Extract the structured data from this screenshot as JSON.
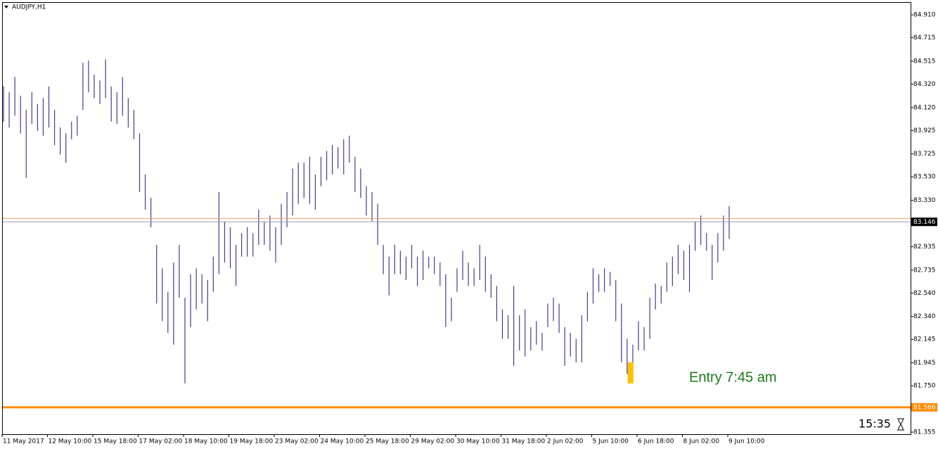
{
  "chart_data": {
    "type": "bar-range",
    "title": "AUDJPY,H1",
    "color": "#4b3a8c",
    "categories": [
      "11 May 2017",
      "12 May 10:00",
      "15 May 18:00",
      "17 May 02:00",
      "18 May 10:00",
      "19 May 18:00",
      "23 May 02:00",
      "24 May 10:00",
      "25 May 18:00",
      "29 May 02:00",
      "30 May 10:00",
      "31 May 18:00",
      "2 Jun 02:00",
      "5 Jun 10:00",
      "6 Jun 18:00",
      "8 Jun 02:00",
      "9 Jun 10:00"
    ],
    "high": [
      84.3,
      84.25,
      84.38,
      84.22,
      84.1,
      84.25,
      84.15,
      84.2,
      84.3,
      84.1,
      83.95,
      83.9,
      84.0,
      84.05,
      84.5,
      84.52,
      84.4,
      84.35,
      84.53,
      84.3,
      84.25,
      84.38,
      84.2,
      84.1,
      83.9,
      83.55,
      83.35,
      82.95,
      82.75,
      82.55,
      82.8,
      82.95,
      82.5,
      82.7,
      82.75,
      82.7,
      82.65,
      82.85,
      83.4,
      83.15,
      83.1,
      82.95,
      83.05,
      83.1,
      83.05,
      83.25,
      83.15,
      83.2,
      83.1,
      83.3,
      83.4,
      83.6,
      83.65,
      83.65,
      83.7,
      83.55,
      83.7,
      83.75,
      83.8,
      83.78,
      83.85,
      83.88,
      83.7,
      83.6,
      83.45,
      83.4,
      83.3,
      82.95,
      82.85,
      82.95,
      82.9,
      82.85,
      82.95,
      82.85,
      82.9,
      82.85,
      82.85,
      82.8,
      82.7,
      82.5,
      82.75,
      82.9,
      82.8,
      82.75,
      82.95,
      82.85,
      82.7,
      82.6,
      82.4,
      82.35,
      82.6,
      82.35,
      82.4,
      82.25,
      82.3,
      82.2,
      82.45,
      82.5,
      82.45,
      82.25,
      82.2,
      82.15,
      82.35,
      82.55,
      82.75,
      82.7,
      82.75,
      82.72,
      82.65,
      82.45,
      82.15,
      82.1,
      82.3,
      82.25,
      82.5,
      82.62,
      82.6,
      82.8,
      82.85,
      82.95,
      82.9,
      82.95,
      83.15,
      83.2,
      83.05,
      82.95,
      83.05,
      83.2,
      83.28
    ],
    "low": [
      84.0,
      83.95,
      84.05,
      83.9,
      83.52,
      83.98,
      83.92,
      83.88,
      83.95,
      83.8,
      83.72,
      83.65,
      83.85,
      83.88,
      84.1,
      84.25,
      84.2,
      84.15,
      84.2,
      84.0,
      83.98,
      84.05,
      83.95,
      83.85,
      83.4,
      83.25,
      83.1,
      82.45,
      82.3,
      82.2,
      82.1,
      82.5,
      81.77,
      82.25,
      82.4,
      82.45,
      82.3,
      82.55,
      82.7,
      82.8,
      82.75,
      82.6,
      82.85,
      82.85,
      82.85,
      82.95,
      82.95,
      82.9,
      82.8,
      82.95,
      83.1,
      83.2,
      83.3,
      83.35,
      83.3,
      83.25,
      83.45,
      83.5,
      83.55,
      83.6,
      83.55,
      83.65,
      83.4,
      83.35,
      83.2,
      83.15,
      82.95,
      82.7,
      82.52,
      82.7,
      82.7,
      82.65,
      82.75,
      82.6,
      82.65,
      82.75,
      82.7,
      82.6,
      82.25,
      82.3,
      82.55,
      82.65,
      82.6,
      82.6,
      82.65,
      82.55,
      82.5,
      82.3,
      82.15,
      82.15,
      81.92,
      82.05,
      82.0,
      82.05,
      82.1,
      82.05,
      82.25,
      82.3,
      82.2,
      81.92,
      82.0,
      81.95,
      81.95,
      82.3,
      82.45,
      82.55,
      82.55,
      82.6,
      82.3,
      81.95,
      81.85,
      81.78,
      82.05,
      82.05,
      82.15,
      82.4,
      82.45,
      82.55,
      82.6,
      82.7,
      82.65,
      82.55,
      82.9,
      82.95,
      82.9,
      82.65,
      82.8,
      82.9,
      83.0
    ],
    "ylim": [
      81.337,
      85.012
    ],
    "yticks": [
      {
        "value": 84.91,
        "label": "84.910"
      },
      {
        "value": 84.715,
        "label": "84.715"
      },
      {
        "value": 84.515,
        "label": "84.515"
      },
      {
        "value": 84.32,
        "label": "84.320"
      },
      {
        "value": 84.12,
        "label": "84.120"
      },
      {
        "value": 83.925,
        "label": "83.925"
      },
      {
        "value": 83.725,
        "label": "83.725"
      },
      {
        "value": 83.53,
        "label": "83.530"
      },
      {
        "value": 83.33,
        "label": "83.330"
      },
      {
        "value": 82.935,
        "label": "82.935"
      },
      {
        "value": 82.735,
        "label": "82.735"
      },
      {
        "value": 82.54,
        "label": "82.540"
      },
      {
        "value": 82.34,
        "label": "82.340"
      },
      {
        "value": 82.145,
        "label": "82.145"
      },
      {
        "value": 81.945,
        "label": "81.945"
      },
      {
        "value": 81.75,
        "label": "81.750"
      },
      {
        "value": 81.355,
        "label": "81.355"
      }
    ],
    "hlines": [
      {
        "value": 83.175,
        "color": "#e8a060",
        "width": 1
      },
      {
        "value": 83.146,
        "color": "#a0a0a0",
        "width": 1,
        "label": "83.146",
        "label_color": "#000000"
      },
      {
        "value": 81.566,
        "color": "#ff8c00",
        "width": 3,
        "label": "81.566",
        "label_color": "#ff8c00"
      }
    ],
    "highlight": {
      "from": 81.77,
      "to": 81.95,
      "color": "#ffc000"
    },
    "annotation": {
      "text": "Entry 7:45 am",
      "color": "#1a7a1a"
    },
    "clock": "15:35"
  }
}
